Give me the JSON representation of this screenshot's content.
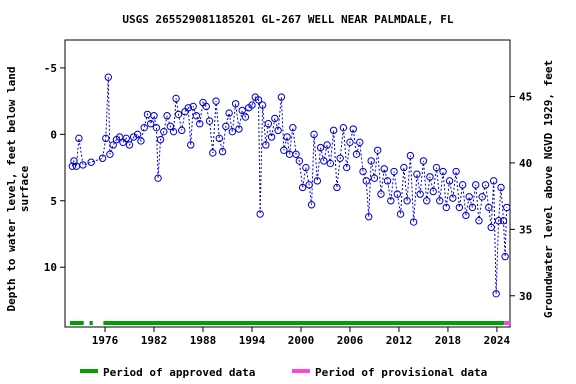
{
  "chart_data": {
    "type": "scatter",
    "title": "USGS 265529081185201 GL-267 WELL NEAR PALMDALE, FL",
    "ylabel": [
      "Depth to water level, feet below land",
      "surface"
    ],
    "y2label": "Groundwater level above NGVD 1929, feet",
    "xlim": [
      1971.1,
      2025.6
    ],
    "xticks": [
      1976,
      1982,
      1988,
      1994,
      2000,
      2006,
      2012,
      2018,
      2024
    ],
    "ylim": [
      -7.1,
      14.5
    ],
    "yticks": [
      -5,
      0,
      5,
      10
    ],
    "y_inverted": true,
    "y2lim": [
      49.25,
      27.65
    ],
    "y2ticks": [
      30,
      35,
      40,
      45
    ],
    "series": [
      {
        "name": "Depth to water level",
        "color": "#0000cc",
        "x": [
          1972.0,
          1972.2,
          1972.5,
          1972.8,
          1973.3,
          1974.3,
          1975.7,
          1976.1,
          1976.4,
          1976.6,
          1977.0,
          1977.4,
          1977.8,
          1978.2,
          1978.6,
          1979.0,
          1979.5,
          1980.0,
          1980.4,
          1980.8,
          1981.2,
          1981.6,
          1982.0,
          1982.3,
          1982.5,
          1982.8,
          1983.2,
          1983.6,
          1984.0,
          1984.4,
          1984.7,
          1985.0,
          1985.4,
          1985.8,
          1986.2,
          1986.5,
          1986.8,
          1987.2,
          1987.6,
          1988.0,
          1988.4,
          1988.8,
          1989.2,
          1989.6,
          1990.0,
          1990.4,
          1990.8,
          1991.2,
          1991.6,
          1992.0,
          1992.4,
          1992.8,
          1993.2,
          1993.6,
          1994.0,
          1994.4,
          1994.8,
          1995.0,
          1995.3,
          1995.7,
          1996.0,
          1996.4,
          1996.8,
          1997.2,
          1997.6,
          1997.9,
          1998.3,
          1998.6,
          1999.0,
          1999.4,
          1999.8,
          2000.2,
          2000.6,
          2001.0,
          2001.3,
          2001.6,
          2002.0,
          2002.4,
          2002.8,
          2003.2,
          2003.6,
          2004.0,
          2004.4,
          2004.8,
          2005.2,
          2005.6,
          2006.0,
          2006.4,
          2006.8,
          2007.2,
          2007.6,
          2008.0,
          2008.3,
          2008.6,
          2009.0,
          2009.4,
          2009.8,
          2010.2,
          2010.6,
          2011.0,
          2011.4,
          2011.8,
          2012.2,
          2012.6,
          2013.0,
          2013.4,
          2013.8,
          2014.2,
          2014.6,
          2015.0,
          2015.4,
          2015.8,
          2016.2,
          2016.6,
          2017.0,
          2017.4,
          2017.8,
          2018.2,
          2018.6,
          2019.0,
          2019.4,
          2019.8,
          2020.2,
          2020.6,
          2021.0,
          2021.4,
          2021.8,
          2022.2,
          2022.6,
          2023.0,
          2023.3,
          2023.6,
          2023.9,
          2024.2,
          2024.5,
          2024.8,
          2025.0,
          2025.2
        ],
        "values": [
          2.4,
          2.0,
          2.4,
          0.3,
          2.3,
          2.1,
          1.8,
          0.3,
          -4.3,
          1.5,
          0.8,
          0.4,
          0.2,
          0.6,
          0.3,
          0.8,
          0.2,
          0.0,
          0.5,
          -0.5,
          -1.5,
          -0.8,
          -1.4,
          -0.5,
          3.3,
          0.4,
          -0.2,
          -1.4,
          -0.6,
          -0.2,
          -2.7,
          -1.5,
          -0.3,
          -1.7,
          -2.0,
          0.8,
          -2.1,
          -1.4,
          -0.8,
          -2.4,
          -2.1,
          -1.0,
          1.4,
          -2.5,
          0.3,
          1.3,
          -0.6,
          -1.6,
          -0.2,
          -2.3,
          -0.4,
          -1.8,
          -1.3,
          -2.0,
          -2.2,
          -2.8,
          -2.6,
          6.0,
          -2.2,
          0.8,
          -0.8,
          0.2,
          -1.2,
          -0.3,
          -2.8,
          1.2,
          0.2,
          1.5,
          -0.5,
          1.5,
          2.0,
          4.0,
          2.5,
          3.8,
          5.3,
          0.0,
          3.5,
          1.0,
          2.0,
          0.8,
          2.2,
          -0.3,
          4.0,
          1.8,
          -0.5,
          2.5,
          0.6,
          -0.4,
          1.5,
          0.6,
          2.8,
          3.5,
          6.2,
          2.0,
          3.3,
          1.2,
          4.5,
          2.6,
          3.5,
          5.0,
          2.8,
          4.5,
          6.0,
          2.5,
          5.0,
          1.6,
          6.6,
          3.0,
          4.5,
          2.0,
          5.0,
          3.2,
          4.3,
          2.5,
          5.0,
          2.8,
          5.5,
          3.5,
          4.8,
          2.8,
          5.5,
          3.8,
          6.1,
          4.7,
          5.5,
          3.8,
          6.5,
          4.7,
          3.8,
          5.5,
          7.0,
          3.5,
          12.0,
          6.5,
          4.0,
          6.5,
          9.2,
          5.5
        ]
      }
    ],
    "periods": [
      {
        "name": "Period of approved data",
        "color": "#00a000",
        "ranges": [
          [
            1971.7,
            1973.4
          ],
          [
            1974.1,
            1974.5
          ],
          [
            1975.8,
            2024.9
          ]
        ]
      },
      {
        "name": "Period of provisional data",
        "color": "#ff44dd",
        "ranges": [
          [
            2024.9,
            2025.6
          ]
        ]
      }
    ]
  }
}
